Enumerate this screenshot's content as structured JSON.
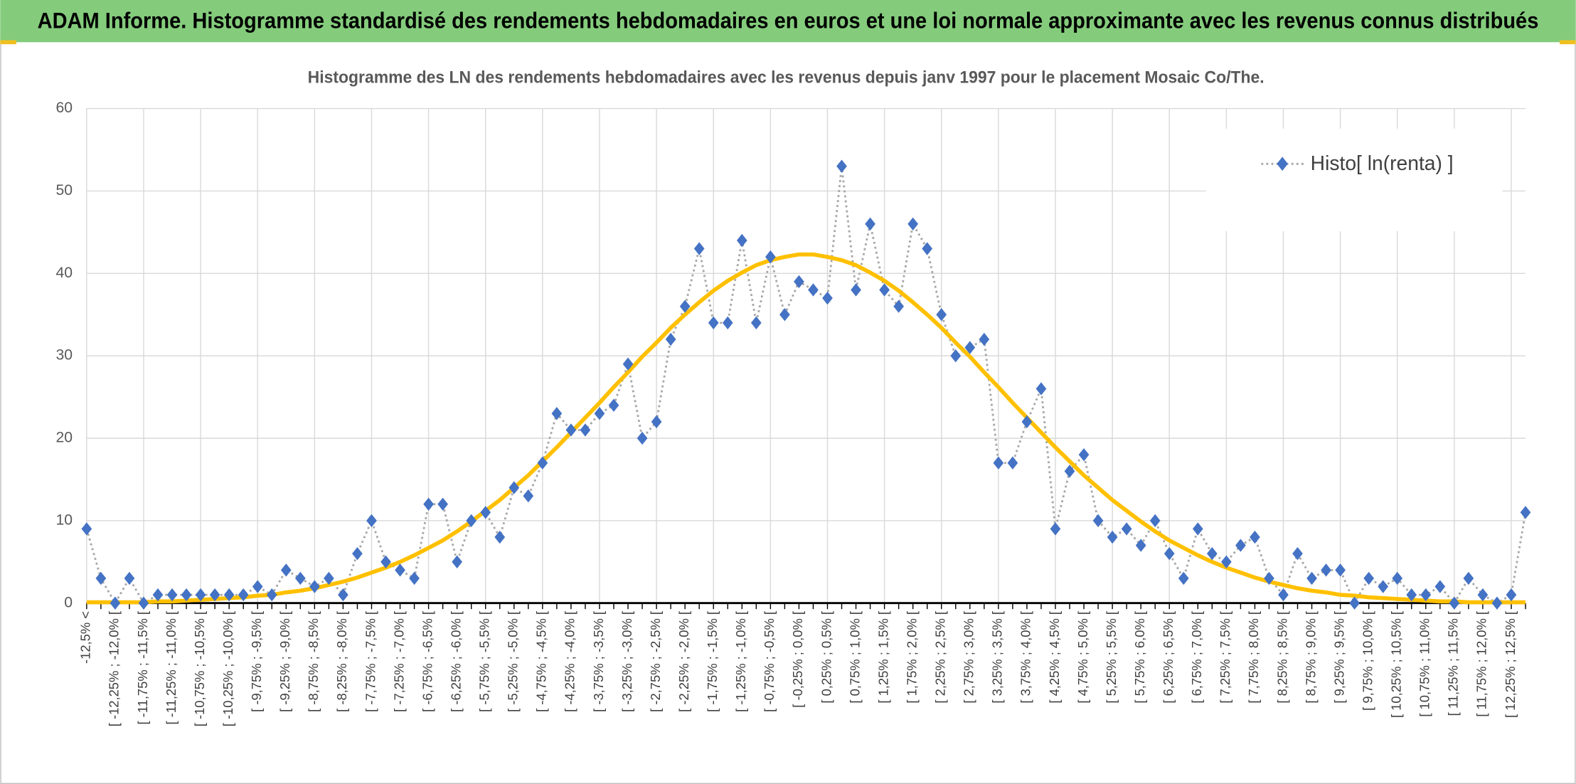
{
  "chart_data": {
    "type": "line",
    "title": "ADAM Informe. Histogramme standardisé des rendements hebdomadaires en euros et une loi normale approximante avec les revenus connus distribués",
    "subtitle": "Histogramme des LN des rendements hebdomadaires avec les revenus depuis janv 1997 pour le placement Mosaic Co/The.",
    "categories": [
      "-12,5% <",
      null,
      "[ -12,25% ; -12,0% [",
      null,
      "[ -11,75% ; -11,5% [",
      null,
      "[ -11,25% ; -11,0% [",
      null,
      "[ -10,75% ; -10,5% [",
      null,
      "[ -10,25% ; -10,0% [",
      null,
      "[ -9,75% ; -9,5% [",
      null,
      "[ -9,25% ; -9,0% [",
      null,
      "[ -8,75% ; -8,5% [",
      null,
      "[ -8,25% ; -8,0% [",
      null,
      "[ -7,75% ; -7,5% [",
      null,
      "[ -7,25% ; -7,0% [",
      null,
      "[ -6,75% ; -6,5% [",
      null,
      "[ -6,25% ; -6,0% [",
      null,
      "[ -5,75% ; -5,5% [",
      null,
      "[ -5,25% ; -5,0% [",
      null,
      "[ -4,75% ; -4,5% [",
      null,
      "[ -4,25% ; -4,0% [",
      null,
      "[ -3,75% ; -3,5% [",
      null,
      "[ -3,25% ; -3,0% [",
      null,
      "[ -2,75% ; -2,5% [",
      null,
      "[ -2,25% ; -2,0% [",
      null,
      "[ -1,75% ; -1,5% [",
      null,
      "[ -1,25% ; -1,0% [",
      null,
      "[ -0,75% ; -0,5% [",
      null,
      "[ -0,25% ; 0,0% [",
      null,
      "[ 0,25% ; 0,5% [",
      null,
      "[ 0,75% ; 1,0% [",
      null,
      "[ 1,25% ; 1,5% [",
      null,
      "[ 1,75% ; 2,0% [",
      null,
      "[ 2,25% ; 2,5% [",
      null,
      "[ 2,75% ; 3,0% [",
      null,
      "[ 3,25% ; 3,5% [",
      null,
      "[ 3,75% ; 4,0% [",
      null,
      "[ 4,25% ; 4,5% [",
      null,
      "[ 4,75% ; 5,0% [",
      null,
      "[ 5,25% ; 5,5% [",
      null,
      "[ 5,75% ; 6,0% [",
      null,
      "[ 6,25% ; 6,5% [",
      null,
      "[ 6,75% ; 7,0% [",
      null,
      "[ 7,25% ; 7,5% [",
      null,
      "[ 7,75% ; 8,0% [",
      null,
      "[ 8,25% ; 8,5% [",
      null,
      "[ 8,75% ; 9,0% [",
      null,
      "[ 9,25% ; 9,5% [",
      null,
      "[ 9,75% ; 10,0% [",
      null,
      "[ 10,25% ; 10,5% [",
      null,
      "[ 10,75% ; 11,0% [",
      null,
      "[ 11,25% ; 11,5% [",
      null,
      "[ 11,75% ; 12,0% [",
      null,
      "[ 12,25% ; 12,5% [",
      null
    ],
    "series": [
      {
        "name": "Histo[ ln(renta) ]",
        "color": "#4472c4",
        "line_color": "#a6a6a6",
        "values": [
          9,
          3,
          0,
          3,
          0,
          1,
          1,
          1,
          1,
          1,
          1,
          1,
          2,
          1,
          4,
          3,
          2,
          3,
          1,
          6,
          10,
          5,
          4,
          3,
          12,
          12,
          5,
          10,
          11,
          8,
          14,
          13,
          17,
          23,
          21,
          21,
          23,
          24,
          29,
          20,
          22,
          32,
          36,
          43,
          34,
          34,
          44,
          34,
          42,
          35,
          39,
          38,
          37,
          53,
          38,
          46,
          38,
          36,
          46,
          43,
          35,
          30,
          31,
          32,
          17,
          17,
          22,
          26,
          9,
          16,
          18,
          10,
          8,
          9,
          7,
          10,
          6,
          3,
          9,
          6,
          5,
          7,
          8,
          3,
          1,
          6,
          3,
          4,
          4,
          0,
          3,
          2,
          3,
          1,
          1,
          2,
          0,
          3,
          1,
          0,
          1,
          11
        ]
      },
      {
        "color": "#ffc000",
        "values": [
          0.1,
          0.1,
          0.1,
          0.1,
          0.1,
          0.2,
          0.2,
          0.3,
          0.4,
          0.5,
          0.6,
          0.7,
          0.9,
          1.0,
          1.3,
          1.5,
          1.8,
          2.2,
          2.6,
          3.1,
          3.7,
          4.3,
          5.0,
          5.8,
          6.7,
          7.6,
          8.7,
          9.9,
          11.2,
          12.5,
          14.0,
          15.5,
          17.2,
          18.9,
          20.7,
          22.5,
          24.3,
          26.2,
          28.0,
          29.9,
          31.6,
          33.4,
          35.0,
          36.5,
          37.9,
          39.1,
          40.1,
          41.0,
          41.6,
          42.0,
          42.3,
          42.3,
          42.0,
          41.6,
          41.0,
          40.1,
          39.1,
          37.9,
          36.5,
          35.0,
          33.4,
          31.6,
          29.9,
          28.0,
          26.2,
          24.3,
          22.5,
          20.7,
          18.9,
          17.2,
          15.5,
          14.0,
          12.5,
          11.2,
          9.9,
          8.7,
          7.6,
          6.7,
          5.8,
          5.0,
          4.3,
          3.7,
          3.1,
          2.6,
          2.2,
          1.8,
          1.5,
          1.3,
          1.0,
          0.9,
          0.7,
          0.6,
          0.5,
          0.4,
          0.3,
          0.2,
          0.2,
          0.1,
          0.1,
          0.1,
          0.1,
          0.1
        ]
      }
    ],
    "ylim": [
      0,
      60
    ],
    "yticks": [
      0,
      10,
      20,
      30,
      40,
      50,
      60
    ],
    "grid": true,
    "legend": "top-right"
  }
}
